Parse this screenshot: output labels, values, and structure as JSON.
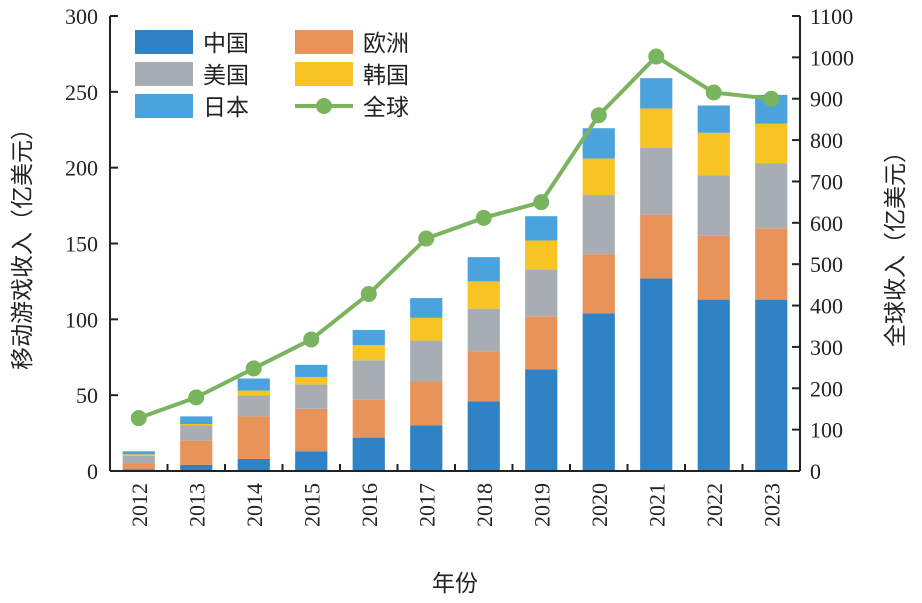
{
  "chart_data": {
    "type": "bar",
    "stacked": true,
    "categories": [
      "2012",
      "2013",
      "2014",
      "2015",
      "2016",
      "2017",
      "2018",
      "2019",
      "2020",
      "2021",
      "2022",
      "2023"
    ],
    "series": [
      {
        "name": "中国",
        "color": "#2f83c4",
        "values": [
          1,
          4,
          8,
          13,
          22,
          30,
          46,
          67,
          104,
          127,
          113,
          113
        ]
      },
      {
        "name": "欧洲",
        "color": "#e8935a",
        "values": [
          4,
          16,
          28,
          28,
          25,
          29,
          33,
          35,
          39,
          42,
          42,
          47
        ]
      },
      {
        "name": "美国",
        "color": "#a8adb3",
        "values": [
          5,
          10,
          14,
          16,
          26,
          27,
          28,
          31,
          39,
          44,
          40,
          43
        ]
      },
      {
        "name": "韩国",
        "color": "#f7c423",
        "values": [
          1,
          1,
          3,
          5,
          10,
          15,
          18,
          19,
          24,
          26,
          28,
          26
        ]
      },
      {
        "name": "日本",
        "color": "#4aa3dc",
        "values": [
          2,
          5,
          8,
          8,
          10,
          13,
          16,
          16,
          20,
          20,
          18,
          19
        ]
      }
    ],
    "line_series": {
      "name": "全球",
      "color": "#7ab45e",
      "axis": "right",
      "values": [
        128,
        178,
        248,
        318,
        428,
        562,
        612,
        650,
        860,
        1002,
        915,
        900
      ]
    },
    "xlabel": "年份",
    "ylabel": "移动游戏收入（亿美元）",
    "y2label": "全球收入（亿美元）",
    "ylim": [
      0,
      300
    ],
    "y2lim": [
      0,
      1100
    ],
    "yticks": [
      0,
      50,
      100,
      150,
      200,
      250,
      300
    ],
    "y2ticks": [
      0,
      100,
      200,
      300,
      400,
      500,
      600,
      700,
      800,
      900,
      1000,
      1100
    ],
    "legend": {
      "placement": "top-left",
      "entries": [
        {
          "label": "中国",
          "kind": "bar",
          "color": "#2f83c4"
        },
        {
          "label": "欧洲",
          "kind": "bar",
          "color": "#e8935a"
        },
        {
          "label": "美国",
          "kind": "bar",
          "color": "#a8adb3"
        },
        {
          "label": "韩国",
          "kind": "bar",
          "color": "#f7c423"
        },
        {
          "label": "日本",
          "kind": "bar",
          "color": "#4aa3dc"
        },
        {
          "label": "全球",
          "kind": "line",
          "color": "#7ab45e"
        }
      ]
    },
    "grid": false
  }
}
